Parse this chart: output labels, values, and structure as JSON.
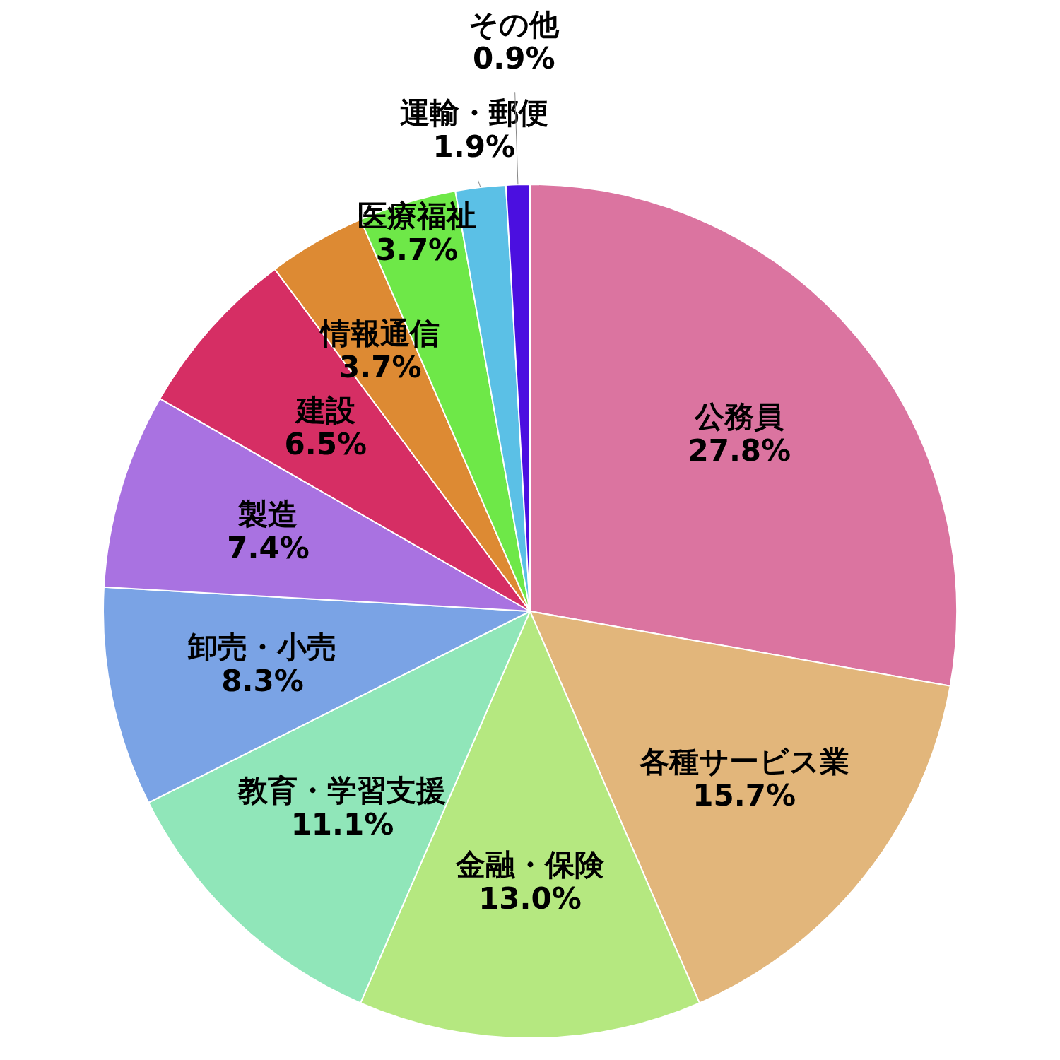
{
  "chart_data": {
    "type": "pie",
    "categories": [
      "公務員",
      "各種サービス業",
      "金融・保険",
      "教育・学習支援",
      "卸売・小売",
      "製造",
      "建設",
      "情報通信",
      "医療福祉",
      "運輸・郵便",
      "その他"
    ],
    "values": [
      27.8,
      15.7,
      13.0,
      11.1,
      8.3,
      7.4,
      6.5,
      3.7,
      3.7,
      1.9,
      0.9
    ],
    "value_labels": [
      "27.8%",
      "15.7%",
      "13.0%",
      "11.1%",
      "8.3%",
      "7.4%",
      "6.5%",
      "3.7%",
      "3.7%",
      "1.9%",
      "0.9%"
    ],
    "colors": [
      "#db74a0",
      "#e2b67b",
      "#b5e880",
      "#90e6b9",
      "#7aa3e5",
      "#a972e1",
      "#d62e64",
      "#dd8a33",
      "#6ee848",
      "#5bc0e6",
      "#4b0fe0"
    ],
    "legend": false
  }
}
